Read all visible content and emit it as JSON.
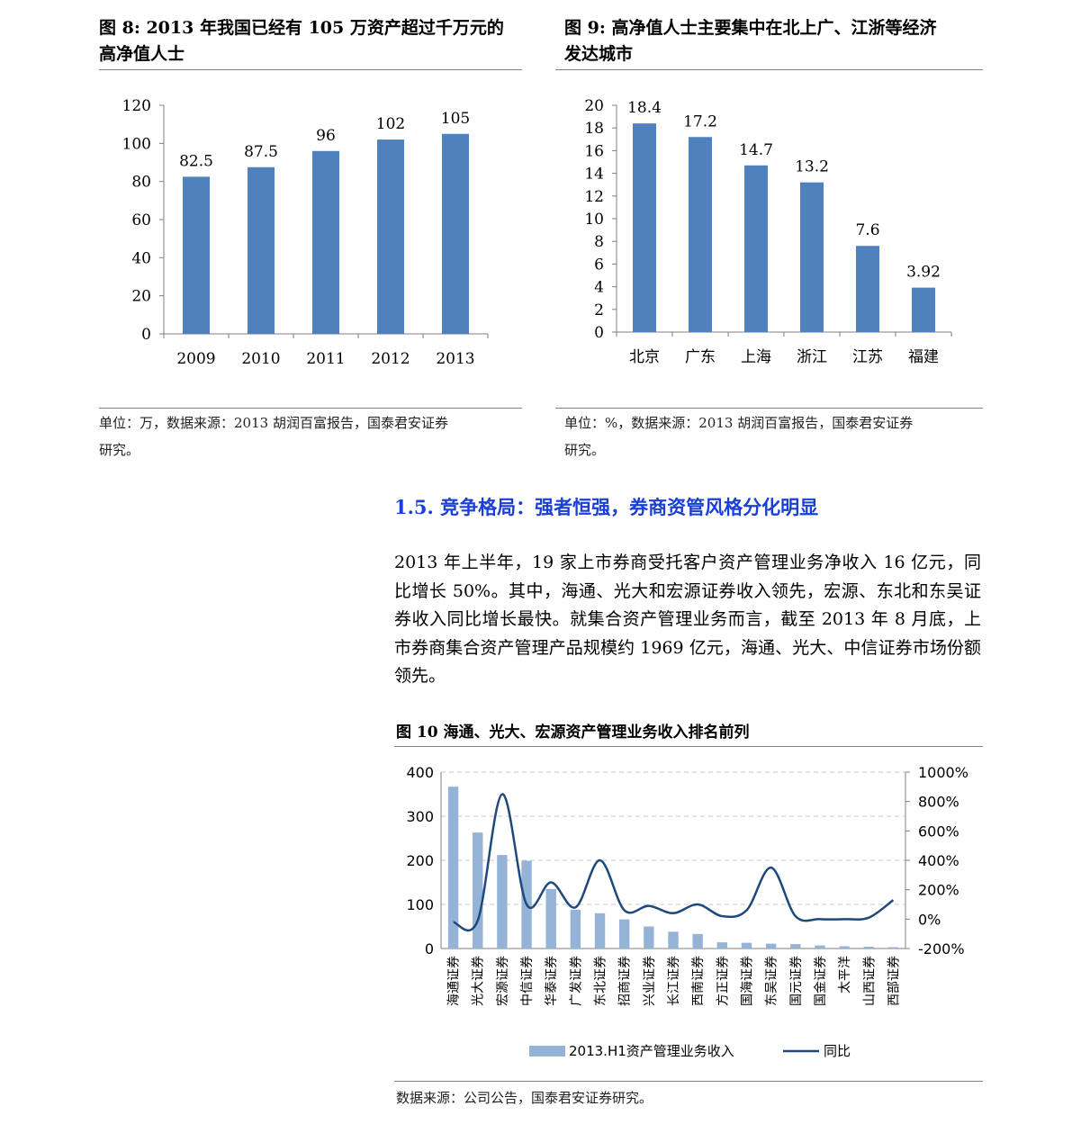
{
  "fig8": {
    "title_line1": "图 8: 2013 年我国已经有 105 万资产超过千万元的",
    "title_line2": "高净值人士",
    "note_line1": "单位：万，数据来源：2013 胡润百富报告，国泰君安证券",
    "note_line2": "研究。"
  },
  "fig9": {
    "title_line1": "图 9: 高净值人士主要集中在北上广、江浙等经济",
    "title_line2": "发达城市",
    "note_line1": "单位：%，数据来源：2013 胡润百富报告，国泰君安证券",
    "note_line2": "研究。"
  },
  "section": {
    "heading": "1.5. 竞争格局：强者恒强，券商资管风格分化明显",
    "paragraph": "2013 年上半年，19 家上市券商受托客户资产管理业务净收入 16 亿元，同比增长 50%。其中，海通、光大和宏源证券收入领先，宏源、东北和东吴证券收入同比增长最快。就集合资产管理业务而言，截至 2013 年 8 月底，上市券商集合资产管理产品规模约 1969 亿元，海通、光大、中信证券市场份额领先。"
  },
  "fig10": {
    "title": "图  10  海通、光大、宏源资产管理业务收入排名前列",
    "note": "数据来源：公司公告，国泰君安证券研究。"
  },
  "chart_data": [
    {
      "type": "bar",
      "categories": [
        "2009",
        "2010",
        "2011",
        "2012",
        "2013"
      ],
      "values": [
        82.5,
        87.5,
        96,
        102,
        105
      ],
      "labels": [
        "82.5",
        "87.5",
        "96",
        "102",
        "105"
      ],
      "ylim": [
        0,
        120
      ],
      "yticks": [
        "0",
        "20",
        "40",
        "60",
        "80",
        "100",
        "120"
      ],
      "color": "#4f81bd"
    },
    {
      "type": "bar",
      "categories": [
        "北京",
        "广东",
        "上海",
        "浙江",
        "江苏",
        "福建"
      ],
      "values": [
        18.4,
        17.2,
        14.7,
        13.2,
        7.6,
        3.92
      ],
      "labels": [
        "18.4",
        "17.2",
        "14.7",
        "13.2",
        "7.6",
        "3.92"
      ],
      "ylim": [
        0,
        20
      ],
      "yticks": [
        "0",
        "2",
        "4",
        "6",
        "8",
        "10",
        "12",
        "14",
        "16",
        "18",
        "20"
      ],
      "color": "#4f81bd"
    },
    {
      "type": "bar+line",
      "categories": [
        "海通证券",
        "光大证券",
        "宏源证券",
        "中信证券",
        "华泰证券",
        "广发证券",
        "东北证券",
        "招商证券",
        "兴业证券",
        "长江证券",
        "西南证券",
        "方正证券",
        "国海证券",
        "东吴证券",
        "国元证券",
        "国金证券",
        "太平洋",
        "山西证券",
        "西部证券"
      ],
      "series": [
        {
          "name": "2013.H1资产管理业务收入",
          "axis": "left",
          "kind": "bar",
          "values": [
            367,
            263,
            212,
            199,
            135,
            88,
            80,
            66,
            50,
            38,
            33,
            14,
            13,
            11,
            10,
            7,
            5,
            4,
            3
          ]
        },
        {
          "name": "同比",
          "axis": "right",
          "kind": "line",
          "values": [
            -20,
            -10,
            850,
            100,
            250,
            80,
            400,
            60,
            90,
            40,
            100,
            20,
            60,
            350,
            20,
            0,
            0,
            10,
            130
          ]
        }
      ],
      "ylim_left": [
        0,
        400
      ],
      "yticks_left": [
        "0",
        "100",
        "200",
        "300",
        "400"
      ],
      "ylim_right": [
        -200,
        1000
      ],
      "yticks_right": [
        "-200%",
        "0%",
        "200%",
        "400%",
        "600%",
        "800%",
        "1000%"
      ],
      "grid": true,
      "legend": "bottom",
      "bar_color": "#95b3d7",
      "line_color": "#1f497d"
    }
  ]
}
